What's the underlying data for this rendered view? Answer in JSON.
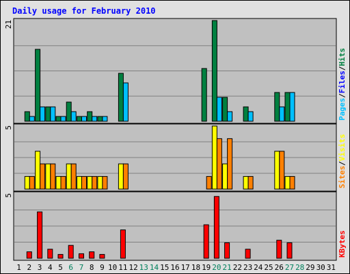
{
  "chart_data": {
    "type": "bar",
    "title": "Daily usage for February 2010",
    "categories": [
      "1",
      "2",
      "3",
      "4",
      "5",
      "6",
      "7",
      "8",
      "9",
      "10",
      "11",
      "12",
      "13",
      "14",
      "15",
      "16",
      "17",
      "18",
      "19",
      "20",
      "21",
      "22",
      "23",
      "24",
      "25",
      "26",
      "27",
      "28",
      "29",
      "30",
      "31"
    ],
    "weekend_days": [
      "6",
      "7",
      "13",
      "14",
      "20",
      "21",
      "27",
      "28"
    ],
    "panels": [
      {
        "id": "hits",
        "ymax_label": "21",
        "ylim": [
          0,
          21
        ],
        "ylabel_parts": [
          {
            "text": "Pages",
            "color": "#00c0ff"
          },
          {
            "text": "/",
            "color": "#000000"
          },
          {
            "text": "Files",
            "color": "#0000ff"
          },
          {
            "text": "/",
            "color": "#000000"
          },
          {
            "text": "Hits",
            "color": "#008040"
          }
        ],
        "series": [
          {
            "color": "#008040",
            "values": [
              0,
              2,
              15,
              3,
              1,
              4,
              1,
              2,
              1,
              0,
              10,
              0,
              0,
              0,
              0,
              0,
              0,
              0,
              11,
              21,
              5,
              0,
              3,
              0,
              0,
              6,
              6,
              0,
              0,
              0,
              0
            ]
          },
          {
            "color": "#00c0ff",
            "values": [
              0,
              1,
              3,
              3,
              1,
              2,
              1,
              1,
              1,
              0,
              8,
              0,
              0,
              0,
              0,
              0,
              0,
              0,
              0,
              5,
              2,
              0,
              2,
              0,
              0,
              3,
              6,
              0,
              0,
              0,
              0
            ]
          }
        ]
      },
      {
        "id": "visits",
        "ymax_label": "5",
        "ylim": [
          0,
          5
        ],
        "ylabel_parts": [
          {
            "text": "Sites",
            "color": "#ff8000"
          },
          {
            "text": "/",
            "color": "#000000"
          },
          {
            "text": "Visits",
            "color": "#ffff00"
          }
        ],
        "series": [
          {
            "color": "#ffff00",
            "values": [
              0,
              1,
              3,
              2,
              1,
              2,
              1,
              1,
              1,
              0,
              2,
              0,
              0,
              0,
              0,
              0,
              0,
              0,
              0,
              5,
              2,
              0,
              1,
              0,
              0,
              3,
              1,
              0,
              0,
              0,
              0
            ]
          },
          {
            "color": "#ff8000",
            "values": [
              0,
              1,
              2,
              2,
              1,
              2,
              1,
              1,
              1,
              0,
              2,
              0,
              0,
              0,
              0,
              0,
              0,
              0,
              1,
              4,
              4,
              0,
              1,
              0,
              0,
              3,
              1,
              0,
              0,
              0,
              0
            ]
          }
        ]
      },
      {
        "id": "kbytes",
        "ymax_label": "5",
        "ylim": [
          0,
          5
        ],
        "ylabel_parts": [
          {
            "text": "KBytes",
            "color": "#ff0000"
          }
        ],
        "series": [
          {
            "color": "#ff0000",
            "values": [
              0,
              0.5,
              3.6,
              0.7,
              0.3,
              1.0,
              0.35,
              0.5,
              0.3,
              0,
              2.2,
              0,
              0,
              0,
              0,
              0,
              0,
              0,
              2.6,
              4.8,
              1.2,
              0,
              0.7,
              0,
              0,
              1.4,
              1.2,
              0,
              0,
              0,
              0
            ]
          }
        ]
      }
    ],
    "colors": {
      "title": "#0000ff",
      "plot_bg": "#c0c0c0",
      "frame_bg": "#e0e0e0",
      "grid": "#808080",
      "day_label": "#000000",
      "weekend_label": "#00805c"
    }
  }
}
